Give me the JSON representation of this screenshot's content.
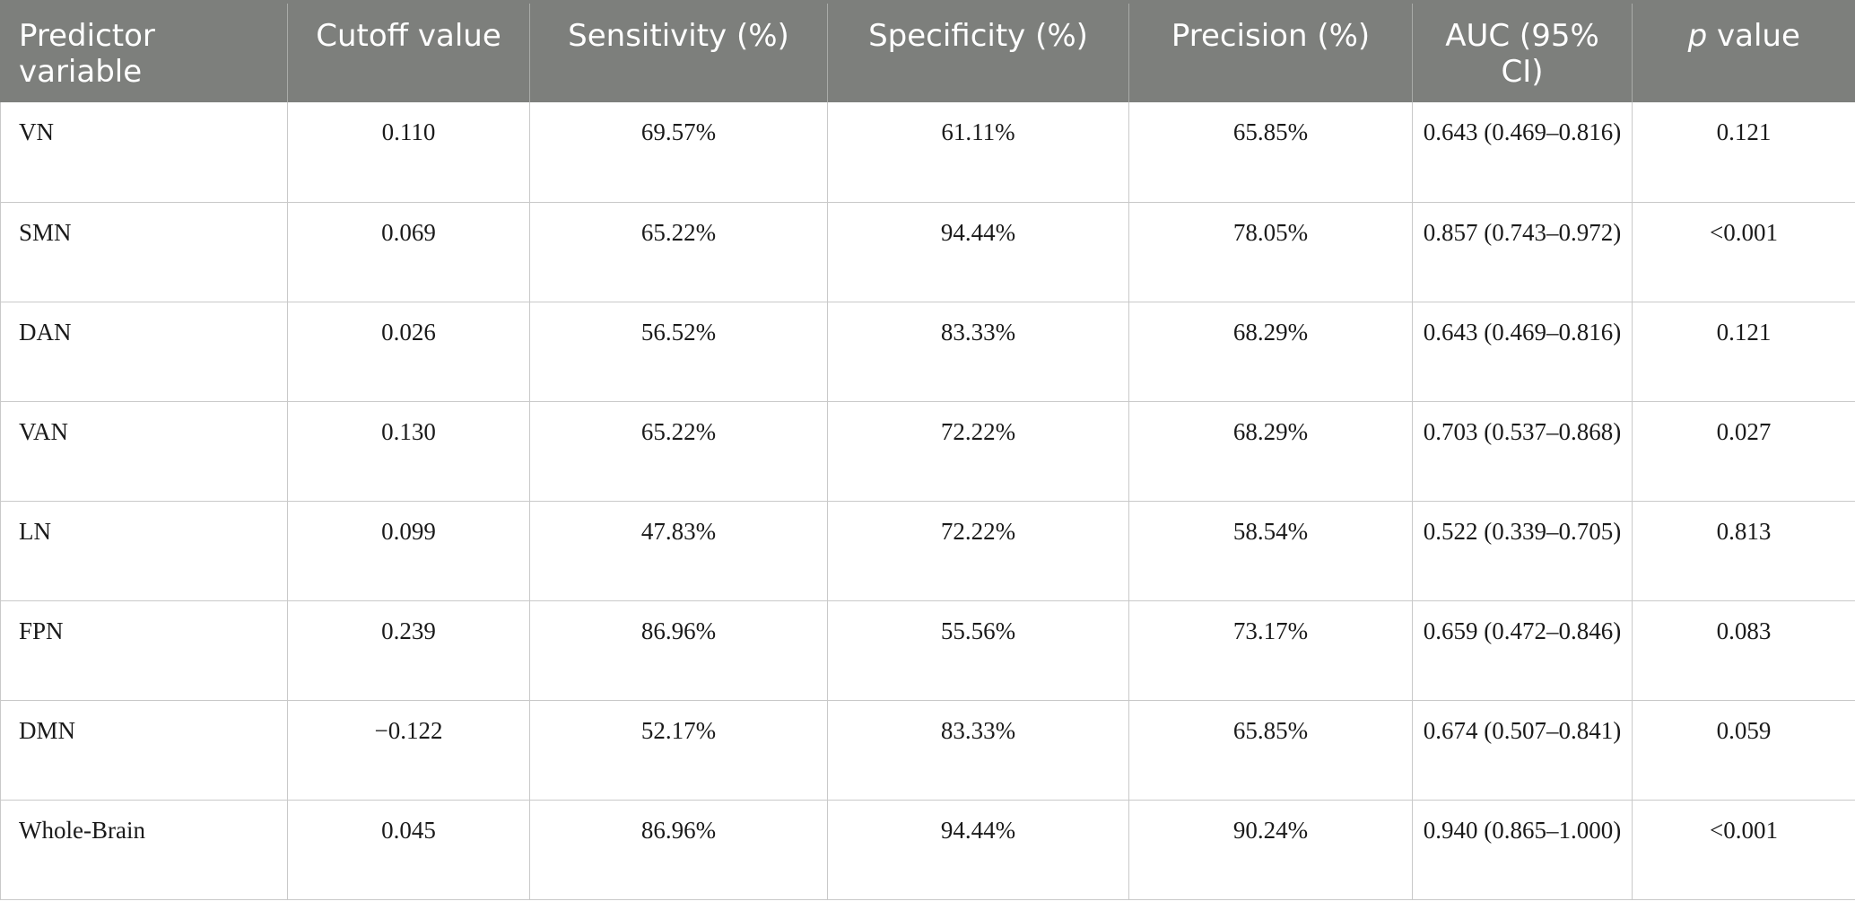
{
  "table": {
    "headers": {
      "predictor": "Predictor variable",
      "cutoff": "Cutoff value",
      "sensitivity": "Sensitivity (%)",
      "specificity": "Specificity (%)",
      "precision": "Precision (%)",
      "auc": "AUC (95% CI)",
      "p_italic": "p",
      "p_rest": " value"
    },
    "rows": [
      {
        "predictor": "VN",
        "cutoff": "0.110",
        "sensitivity": "69.57%",
        "specificity": "61.11%",
        "precision": "65.85%",
        "auc": "0.643 (0.469–0.816)",
        "p": "0.121"
      },
      {
        "predictor": "SMN",
        "cutoff": "0.069",
        "sensitivity": "65.22%",
        "specificity": "94.44%",
        "precision": "78.05%",
        "auc": "0.857 (0.743–0.972)",
        "p": "<0.001"
      },
      {
        "predictor": "DAN",
        "cutoff": "0.026",
        "sensitivity": "56.52%",
        "specificity": "83.33%",
        "precision": "68.29%",
        "auc": "0.643 (0.469–0.816)",
        "p": "0.121"
      },
      {
        "predictor": "VAN",
        "cutoff": "0.130",
        "sensitivity": "65.22%",
        "specificity": "72.22%",
        "precision": "68.29%",
        "auc": "0.703 (0.537–0.868)",
        "p": "0.027"
      },
      {
        "predictor": "LN",
        "cutoff": "0.099",
        "sensitivity": "47.83%",
        "specificity": "72.22%",
        "precision": "58.54%",
        "auc": "0.522 (0.339–0.705)",
        "p": "0.813"
      },
      {
        "predictor": "FPN",
        "cutoff": "0.239",
        "sensitivity": "86.96%",
        "specificity": "55.56%",
        "precision": "73.17%",
        "auc": "0.659 (0.472–0.846)",
        "p": "0.083"
      },
      {
        "predictor": "DMN",
        "cutoff": "−0.122",
        "sensitivity": "52.17%",
        "specificity": "83.33%",
        "precision": "65.85%",
        "auc": "0.674 (0.507–0.841)",
        "p": "0.059"
      },
      {
        "predictor": "Whole-Brain",
        "cutoff": "0.045",
        "sensitivity": "86.96%",
        "specificity": "94.44%",
        "precision": "90.24%",
        "auc": "0.940 (0.865–1.000)",
        "p": "<0.001"
      }
    ]
  },
  "colors": {
    "header_bg": "#7d7f7c",
    "header_text": "#ffffff",
    "grid": "#c9c9c9"
  }
}
